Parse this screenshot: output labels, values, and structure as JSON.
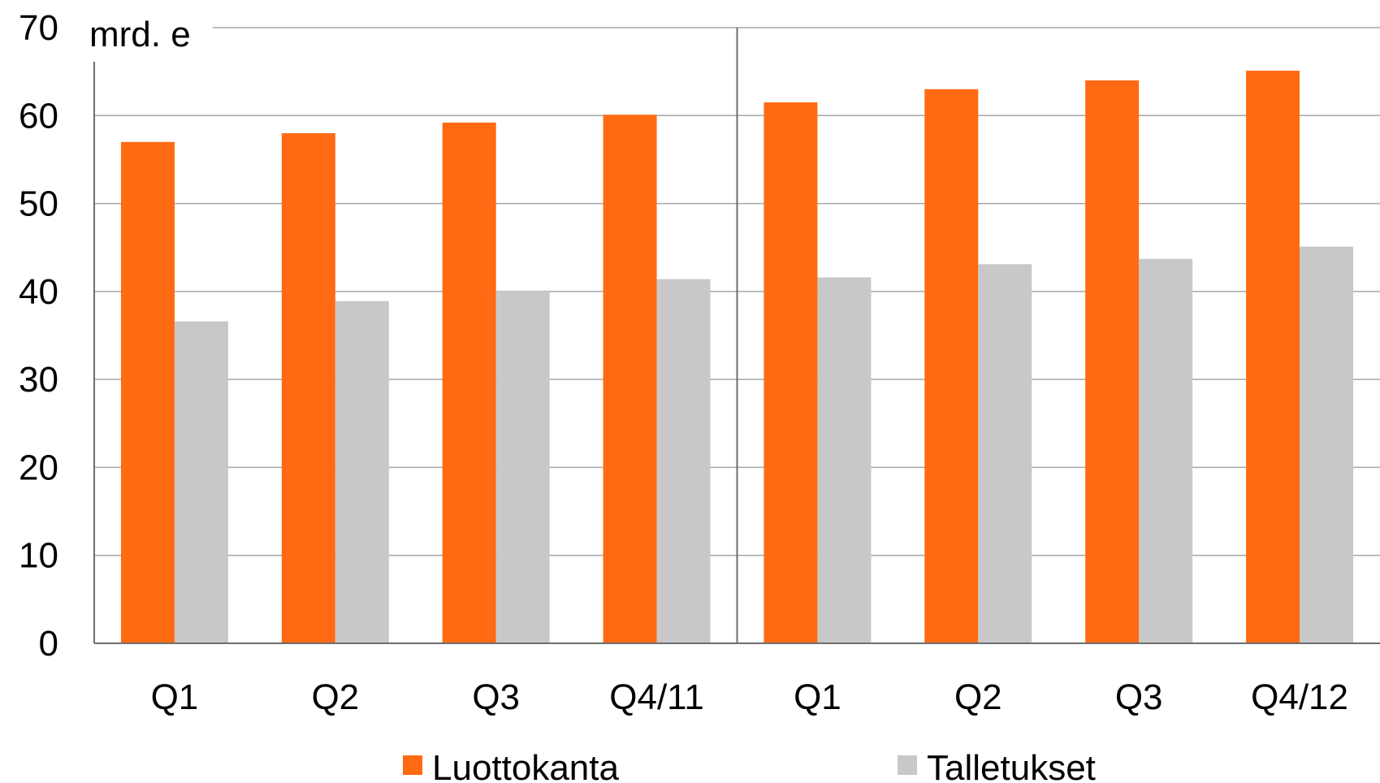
{
  "chart_data": {
    "type": "bar",
    "title": "",
    "ylabel": "mrd. e",
    "xlabel": "",
    "ylim": [
      0,
      70
    ],
    "yticks": [
      0,
      10,
      20,
      30,
      40,
      50,
      60,
      70
    ],
    "categories": [
      "Q1",
      "Q2",
      "Q3",
      "Q4/11",
      "Q1",
      "Q2",
      "Q3",
      "Q4/12"
    ],
    "series": [
      {
        "name": "Luottokanta",
        "color": "#ff6a13",
        "values": [
          57.0,
          58.0,
          59.2,
          60.1,
          61.5,
          63.0,
          64.0,
          65.1
        ]
      },
      {
        "name": "Talletukset",
        "color": "#c8c8c8",
        "values": [
          36.6,
          38.9,
          40.1,
          41.4,
          41.6,
          43.1,
          43.7,
          45.1
        ]
      }
    ],
    "grid": true,
    "year_separator_after_index": 3,
    "legend_position": "bottom"
  }
}
